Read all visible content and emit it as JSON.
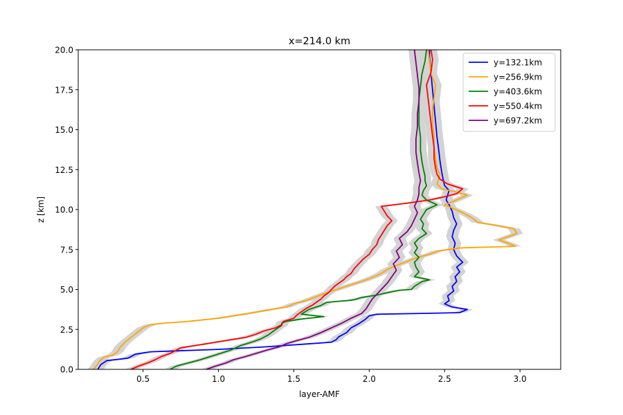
{
  "chart_data": {
    "type": "line",
    "title": "x=214.0 km",
    "xlabel": "layer-AMF",
    "ylabel": "z [km]",
    "xlim": [
      0.07,
      3.27
    ],
    "ylim": [
      0,
      20
    ],
    "xticks": [
      "0.5",
      "1.0",
      "1.5",
      "2.0",
      "2.5",
      "3.0"
    ],
    "yticks": [
      "0.0",
      "2.5",
      "5.0",
      "7.5",
      "10.0",
      "12.5",
      "15.0",
      "17.5",
      "20.0"
    ],
    "grid": false,
    "legend_position": "top-right",
    "uncertainty_band": {
      "color": "#d3d3d3",
      "half_width": 0.04
    },
    "series": [
      {
        "name": "y=132.1km",
        "color": "#0000ff",
        "points": [
          [
            0.2,
            0.0
          ],
          [
            0.22,
            0.3
          ],
          [
            0.26,
            0.55
          ],
          [
            0.33,
            0.62
          ],
          [
            0.4,
            0.7
          ],
          [
            0.45,
            0.95
          ],
          [
            0.55,
            1.1
          ],
          [
            0.7,
            1.15
          ],
          [
            1.0,
            1.25
          ],
          [
            1.3,
            1.4
          ],
          [
            1.45,
            1.5
          ],
          [
            1.6,
            1.6
          ],
          [
            1.75,
            1.7
          ],
          [
            1.78,
            1.85
          ],
          [
            1.8,
            2.05
          ],
          [
            1.85,
            2.3
          ],
          [
            1.88,
            2.6
          ],
          [
            1.93,
            2.85
          ],
          [
            1.97,
            3.1
          ],
          [
            2.0,
            3.35
          ],
          [
            2.05,
            3.45
          ],
          [
            2.35,
            3.5
          ],
          [
            2.6,
            3.55
          ],
          [
            2.65,
            3.75
          ],
          [
            2.55,
            3.9
          ],
          [
            2.5,
            4.1
          ],
          [
            2.53,
            4.3
          ],
          [
            2.52,
            4.6
          ],
          [
            2.56,
            4.9
          ],
          [
            2.55,
            5.2
          ],
          [
            2.58,
            5.5
          ],
          [
            2.57,
            5.8
          ],
          [
            2.6,
            6.1
          ],
          [
            2.58,
            6.4
          ],
          [
            2.62,
            6.7
          ],
          [
            2.58,
            7.1
          ],
          [
            2.56,
            7.5
          ],
          [
            2.57,
            7.9
          ],
          [
            2.55,
            8.3
          ],
          [
            2.56,
            8.7
          ],
          [
            2.58,
            9.1
          ],
          [
            2.56,
            9.5
          ],
          [
            2.55,
            9.9
          ],
          [
            2.53,
            10.3
          ],
          [
            2.51,
            10.6
          ],
          [
            2.52,
            10.9
          ],
          [
            2.53,
            11.2
          ],
          [
            2.5,
            11.5
          ],
          [
            2.49,
            11.9
          ],
          [
            2.48,
            12.4
          ],
          [
            2.47,
            13.0
          ],
          [
            2.46,
            13.8
          ],
          [
            2.45,
            14.5
          ],
          [
            2.44,
            15.5
          ],
          [
            2.43,
            16.5
          ],
          [
            2.42,
            17.5
          ],
          [
            2.41,
            18.5
          ],
          [
            2.4,
            19.5
          ],
          [
            2.4,
            20.0
          ]
        ]
      },
      {
        "name": "y=256.9km",
        "color": "#ffa500",
        "points": [
          [
            0.17,
            0.0
          ],
          [
            0.19,
            0.2
          ],
          [
            0.21,
            0.5
          ],
          [
            0.24,
            0.75
          ],
          [
            0.3,
            0.9
          ],
          [
            0.33,
            1.1
          ],
          [
            0.35,
            1.4
          ],
          [
            0.38,
            1.7
          ],
          [
            0.42,
            2.0
          ],
          [
            0.46,
            2.3
          ],
          [
            0.5,
            2.6
          ],
          [
            0.55,
            2.8
          ],
          [
            0.65,
            2.9
          ],
          [
            0.8,
            3.0
          ],
          [
            1.0,
            3.2
          ],
          [
            1.2,
            3.5
          ],
          [
            1.35,
            3.75
          ],
          [
            1.45,
            3.9
          ],
          [
            1.5,
            4.1
          ],
          [
            1.58,
            4.3
          ],
          [
            1.65,
            4.55
          ],
          [
            1.72,
            4.8
          ],
          [
            1.8,
            5.05
          ],
          [
            1.88,
            5.3
          ],
          [
            1.95,
            5.5
          ],
          [
            2.02,
            5.75
          ],
          [
            2.08,
            6.0
          ],
          [
            2.12,
            6.25
          ],
          [
            2.18,
            6.5
          ],
          [
            2.25,
            6.75
          ],
          [
            2.32,
            7.0
          ],
          [
            2.4,
            7.2
          ],
          [
            2.45,
            7.4
          ],
          [
            2.6,
            7.6
          ],
          [
            2.97,
            7.7
          ],
          [
            2.92,
            7.9
          ],
          [
            2.86,
            8.1
          ],
          [
            2.92,
            8.3
          ],
          [
            2.98,
            8.5
          ],
          [
            2.96,
            8.8
          ],
          [
            2.85,
            9.0
          ],
          [
            2.72,
            9.2
          ],
          [
            2.68,
            9.5
          ],
          [
            2.62,
            9.8
          ],
          [
            2.55,
            10.1
          ],
          [
            2.5,
            10.3
          ],
          [
            2.58,
            10.6
          ],
          [
            2.65,
            10.9
          ],
          [
            2.58,
            11.1
          ],
          [
            2.48,
            11.3
          ],
          [
            2.45,
            11.6
          ],
          [
            2.46,
            11.9
          ],
          [
            2.47,
            12.2
          ],
          [
            2.45,
            12.6
          ],
          [
            2.44,
            13.2
          ],
          [
            2.43,
            13.9
          ],
          [
            2.43,
            14.6
          ],
          [
            2.42,
            15.4
          ],
          [
            2.42,
            16.2
          ],
          [
            2.43,
            17.0
          ],
          [
            2.44,
            17.8
          ],
          [
            2.41,
            18.5
          ],
          [
            2.4,
            19.3
          ],
          [
            2.39,
            20.0
          ]
        ]
      },
      {
        "name": "y=403.6km",
        "color": "#008000",
        "points": [
          [
            0.68,
            0.0
          ],
          [
            0.72,
            0.2
          ],
          [
            0.8,
            0.4
          ],
          [
            0.88,
            0.6
          ],
          [
            0.98,
            0.9
          ],
          [
            1.08,
            1.2
          ],
          [
            1.15,
            1.5
          ],
          [
            1.22,
            1.7
          ],
          [
            1.28,
            1.9
          ],
          [
            1.33,
            2.15
          ],
          [
            1.38,
            2.5
          ],
          [
            1.42,
            2.75
          ],
          [
            1.42,
            2.9
          ],
          [
            1.45,
            3.0
          ],
          [
            1.55,
            3.15
          ],
          [
            1.7,
            3.3
          ],
          [
            1.55,
            3.45
          ],
          [
            1.6,
            3.75
          ],
          [
            1.68,
            4.0
          ],
          [
            1.72,
            4.2
          ],
          [
            1.85,
            4.3
          ],
          [
            1.9,
            4.35
          ],
          [
            1.95,
            4.5
          ],
          [
            2.05,
            4.65
          ],
          [
            2.12,
            4.8
          ],
          [
            2.2,
            4.95
          ],
          [
            2.28,
            5.0
          ],
          [
            2.3,
            5.2
          ],
          [
            2.35,
            5.5
          ],
          [
            2.4,
            5.6
          ],
          [
            2.3,
            5.8
          ],
          [
            2.33,
            6.1
          ],
          [
            2.31,
            6.4
          ],
          [
            2.3,
            6.7
          ],
          [
            2.33,
            7.0
          ],
          [
            2.3,
            7.3
          ],
          [
            2.32,
            7.6
          ],
          [
            2.3,
            7.9
          ],
          [
            2.33,
            8.2
          ],
          [
            2.38,
            8.5
          ],
          [
            2.35,
            8.8
          ],
          [
            2.36,
            9.1
          ],
          [
            2.34,
            9.4
          ],
          [
            2.36,
            9.7
          ],
          [
            2.38,
            10.0
          ],
          [
            2.45,
            10.3
          ],
          [
            2.38,
            10.6
          ],
          [
            2.35,
            10.9
          ],
          [
            2.36,
            11.2
          ],
          [
            2.38,
            11.5
          ],
          [
            2.37,
            11.8
          ],
          [
            2.37,
            12.1
          ],
          [
            2.36,
            12.5
          ],
          [
            2.35,
            13.0
          ],
          [
            2.34,
            13.7
          ],
          [
            2.34,
            14.5
          ],
          [
            2.33,
            15.3
          ],
          [
            2.33,
            16.1
          ],
          [
            2.33,
            16.9
          ],
          [
            2.34,
            17.7
          ],
          [
            2.35,
            18.5
          ],
          [
            2.37,
            19.3
          ],
          [
            2.38,
            20.0
          ]
        ]
      },
      {
        "name": "y=550.4km",
        "color": "#ff0000",
        "points": [
          [
            0.42,
            0.0
          ],
          [
            0.47,
            0.2
          ],
          [
            0.53,
            0.4
          ],
          [
            0.58,
            0.6
          ],
          [
            0.62,
            0.8
          ],
          [
            0.68,
            1.0
          ],
          [
            0.72,
            1.2
          ],
          [
            0.75,
            1.35
          ],
          [
            0.82,
            1.45
          ],
          [
            0.92,
            1.6
          ],
          [
            1.05,
            1.8
          ],
          [
            1.18,
            2.0
          ],
          [
            1.25,
            2.2
          ],
          [
            1.3,
            2.4
          ],
          [
            1.38,
            2.6
          ],
          [
            1.42,
            2.8
          ],
          [
            1.43,
            3.0
          ],
          [
            1.5,
            3.2
          ],
          [
            1.52,
            3.4
          ],
          [
            1.55,
            3.6
          ],
          [
            1.58,
            3.8
          ],
          [
            1.62,
            4.0
          ],
          [
            1.65,
            4.2
          ],
          [
            1.68,
            4.4
          ],
          [
            1.7,
            4.6
          ],
          [
            1.73,
            4.8
          ],
          [
            1.75,
            5.0
          ],
          [
            1.77,
            5.2
          ],
          [
            1.8,
            5.4
          ],
          [
            1.83,
            5.6
          ],
          [
            1.85,
            5.8
          ],
          [
            1.88,
            6.0
          ],
          [
            1.9,
            6.3
          ],
          [
            1.93,
            6.6
          ],
          [
            1.96,
            6.9
          ],
          [
            2.0,
            7.2
          ],
          [
            2.02,
            7.5
          ],
          [
            2.05,
            7.8
          ],
          [
            2.06,
            8.1
          ],
          [
            2.08,
            8.4
          ],
          [
            2.1,
            8.7
          ],
          [
            2.12,
            9.0
          ],
          [
            2.15,
            9.3
          ],
          [
            2.12,
            9.6
          ],
          [
            2.1,
            9.9
          ],
          [
            2.08,
            10.2
          ],
          [
            2.25,
            10.4
          ],
          [
            2.4,
            10.6
          ],
          [
            2.5,
            10.8
          ],
          [
            2.58,
            11.0
          ],
          [
            2.62,
            11.3
          ],
          [
            2.52,
            11.6
          ],
          [
            2.47,
            11.9
          ],
          [
            2.45,
            12.2
          ],
          [
            2.44,
            12.6
          ],
          [
            2.43,
            13.2
          ],
          [
            2.43,
            13.9
          ],
          [
            2.42,
            14.6
          ],
          [
            2.41,
            15.4
          ],
          [
            2.4,
            16.2
          ],
          [
            2.39,
            17.0
          ],
          [
            2.38,
            17.8
          ],
          [
            2.41,
            18.6
          ],
          [
            2.42,
            19.4
          ],
          [
            2.41,
            20.0
          ]
        ]
      },
      {
        "name": "y=697.2km",
        "color": "#800080",
        "points": [
          [
            0.92,
            0.0
          ],
          [
            0.98,
            0.2
          ],
          [
            1.05,
            0.4
          ],
          [
            1.1,
            0.6
          ],
          [
            1.18,
            0.8
          ],
          [
            1.25,
            1.0
          ],
          [
            1.32,
            1.2
          ],
          [
            1.4,
            1.4
          ],
          [
            1.45,
            1.6
          ],
          [
            1.52,
            1.8
          ],
          [
            1.6,
            2.0
          ],
          [
            1.68,
            2.3
          ],
          [
            1.75,
            2.6
          ],
          [
            1.82,
            2.9
          ],
          [
            1.88,
            3.2
          ],
          [
            1.95,
            3.5
          ],
          [
            1.98,
            3.8
          ],
          [
            2.0,
            4.1
          ],
          [
            2.02,
            4.4
          ],
          [
            2.05,
            4.7
          ],
          [
            2.08,
            5.0
          ],
          [
            2.12,
            5.4
          ],
          [
            2.15,
            5.8
          ],
          [
            2.18,
            6.2
          ],
          [
            2.16,
            6.6
          ],
          [
            2.2,
            7.0
          ],
          [
            2.18,
            7.4
          ],
          [
            2.22,
            7.8
          ],
          [
            2.2,
            8.2
          ],
          [
            2.25,
            8.6
          ],
          [
            2.28,
            9.0
          ],
          [
            2.3,
            9.4
          ],
          [
            2.32,
            9.8
          ],
          [
            2.3,
            10.2
          ],
          [
            2.32,
            10.6
          ],
          [
            2.33,
            11.0
          ],
          [
            2.33,
            11.4
          ],
          [
            2.34,
            11.8
          ],
          [
            2.33,
            12.3
          ],
          [
            2.32,
            12.9
          ],
          [
            2.31,
            13.6
          ],
          [
            2.31,
            14.4
          ],
          [
            2.32,
            15.2
          ],
          [
            2.32,
            16.0
          ],
          [
            2.33,
            16.8
          ],
          [
            2.33,
            17.6
          ],
          [
            2.32,
            18.4
          ],
          [
            2.31,
            19.2
          ],
          [
            2.3,
            20.0
          ]
        ]
      }
    ]
  }
}
